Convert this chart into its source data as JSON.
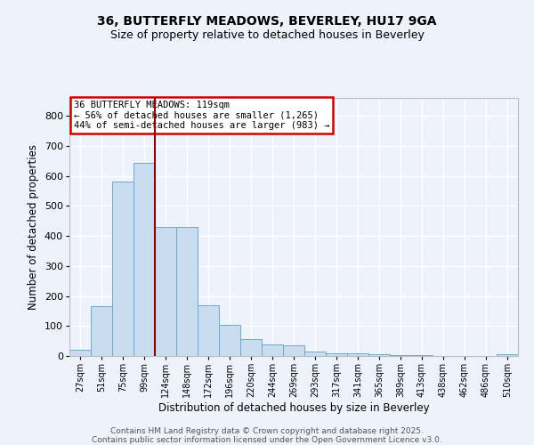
{
  "title1": "36, BUTTERFLY MEADOWS, BEVERLEY, HU17 9GA",
  "title2": "Size of property relative to detached houses in Beverley",
  "xlabel": "Distribution of detached houses by size in Beverley",
  "ylabel": "Number of detached properties",
  "categories": [
    "27sqm",
    "51sqm",
    "75sqm",
    "99sqm",
    "124sqm",
    "148sqm",
    "172sqm",
    "196sqm",
    "220sqm",
    "244sqm",
    "269sqm",
    "293sqm",
    "317sqm",
    "341sqm",
    "365sqm",
    "389sqm",
    "413sqm",
    "438sqm",
    "462sqm",
    "486sqm",
    "510sqm"
  ],
  "values": [
    20,
    165,
    580,
    645,
    430,
    430,
    170,
    105,
    57,
    40,
    35,
    15,
    10,
    8,
    5,
    4,
    2,
    1,
    1,
    1,
    5
  ],
  "bar_color": "#c8ddf0",
  "bar_edge_color": "#6aaad4",
  "background_color": "#eef2fb",
  "grid_color": "#ffffff",
  "vline_color": "#8b0000",
  "vline_x_index": 3.5,
  "annotation_title": "36 BUTTERFLY MEADOWS: 119sqm",
  "annotation_line1": "← 56% of detached houses are smaller (1,265)",
  "annotation_line2": "44% of semi-detached houses are larger (983) →",
  "annotation_box_facecolor": "#ffffff",
  "annotation_box_edgecolor": "#cc0000",
  "ylim": [
    0,
    860
  ],
  "yticks": [
    0,
    100,
    200,
    300,
    400,
    500,
    600,
    700,
    800
  ],
  "footer1": "Contains HM Land Registry data © Crown copyright and database right 2025.",
  "footer2": "Contains public sector information licensed under the Open Government Licence v3.0."
}
